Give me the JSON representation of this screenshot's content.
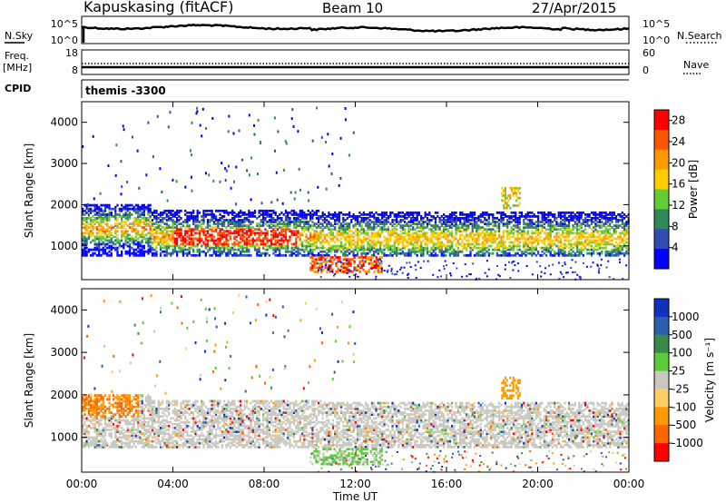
{
  "header": {
    "station": "Kapuskasing (fitACF)",
    "beam": "Beam 10",
    "date": "27/Apr/2015"
  },
  "noise_panel": {
    "left_label": "N.Sky",
    "right_label": "N.Search",
    "left_ticks": [
      "10^5",
      "10^0"
    ],
    "right_ticks": [
      "10^5",
      "10^0"
    ]
  },
  "freq_panel": {
    "left_label_top": "Freq.",
    "left_label_unit": "[MHz]",
    "right_label": "Nave",
    "left_ticks": [
      "18",
      "8"
    ],
    "right_ticks": [
      "60",
      "0"
    ],
    "cpid_label": "CPID",
    "cpid_value": "themis -3300"
  },
  "colors": {
    "power_scale": [
      "#0000ff",
      "#2f4fb0",
      "#2e8b57",
      "#66cc33",
      "#ffcc00",
      "#ff9900",
      "#ff5500",
      "#ff0000"
    ],
    "velocity_scale": [
      "#1030c0",
      "#2a5fb0",
      "#3a8a4a",
      "#5acc3a",
      "#c8c8c0",
      "#ffcc66",
      "#ff9900",
      "#ff6600",
      "#ff0000"
    ],
    "ground_scatter": "#c8c8c0"
  },
  "chart_data": [
    {
      "type": "heatmap",
      "parameter": "power",
      "ylabel": "Slant Range [km]",
      "yticks": [
        1000,
        2000,
        3000,
        4000
      ],
      "ylim": [
        180,
        4500
      ],
      "xlim_hours": [
        0,
        24
      ],
      "colorbar_label": "Power [dB]",
      "colorbar_ticks": [
        "4",
        "8",
        "12",
        "16",
        "20",
        "24",
        "28"
      ],
      "colorbar_range": [
        0,
        30
      ]
    },
    {
      "type": "heatmap",
      "parameter": "velocity",
      "ylabel": "Slant Range [km]",
      "yticks": [
        1000,
        2000,
        3000,
        4000
      ],
      "ylim": [
        180,
        4500
      ],
      "xlim_hours": [
        0,
        24
      ],
      "colorbar_label": "Velocity [m s⁻¹]",
      "colorbar_ticks": [
        "1000",
        "500",
        "100",
        "25",
        "-25",
        "-100",
        "-500",
        "-1000"
      ],
      "xlabel": "Time UT",
      "xticks": [
        "00:00",
        "04:00",
        "08:00",
        "12:00",
        "16:00",
        "20:00",
        "00:00"
      ]
    }
  ]
}
